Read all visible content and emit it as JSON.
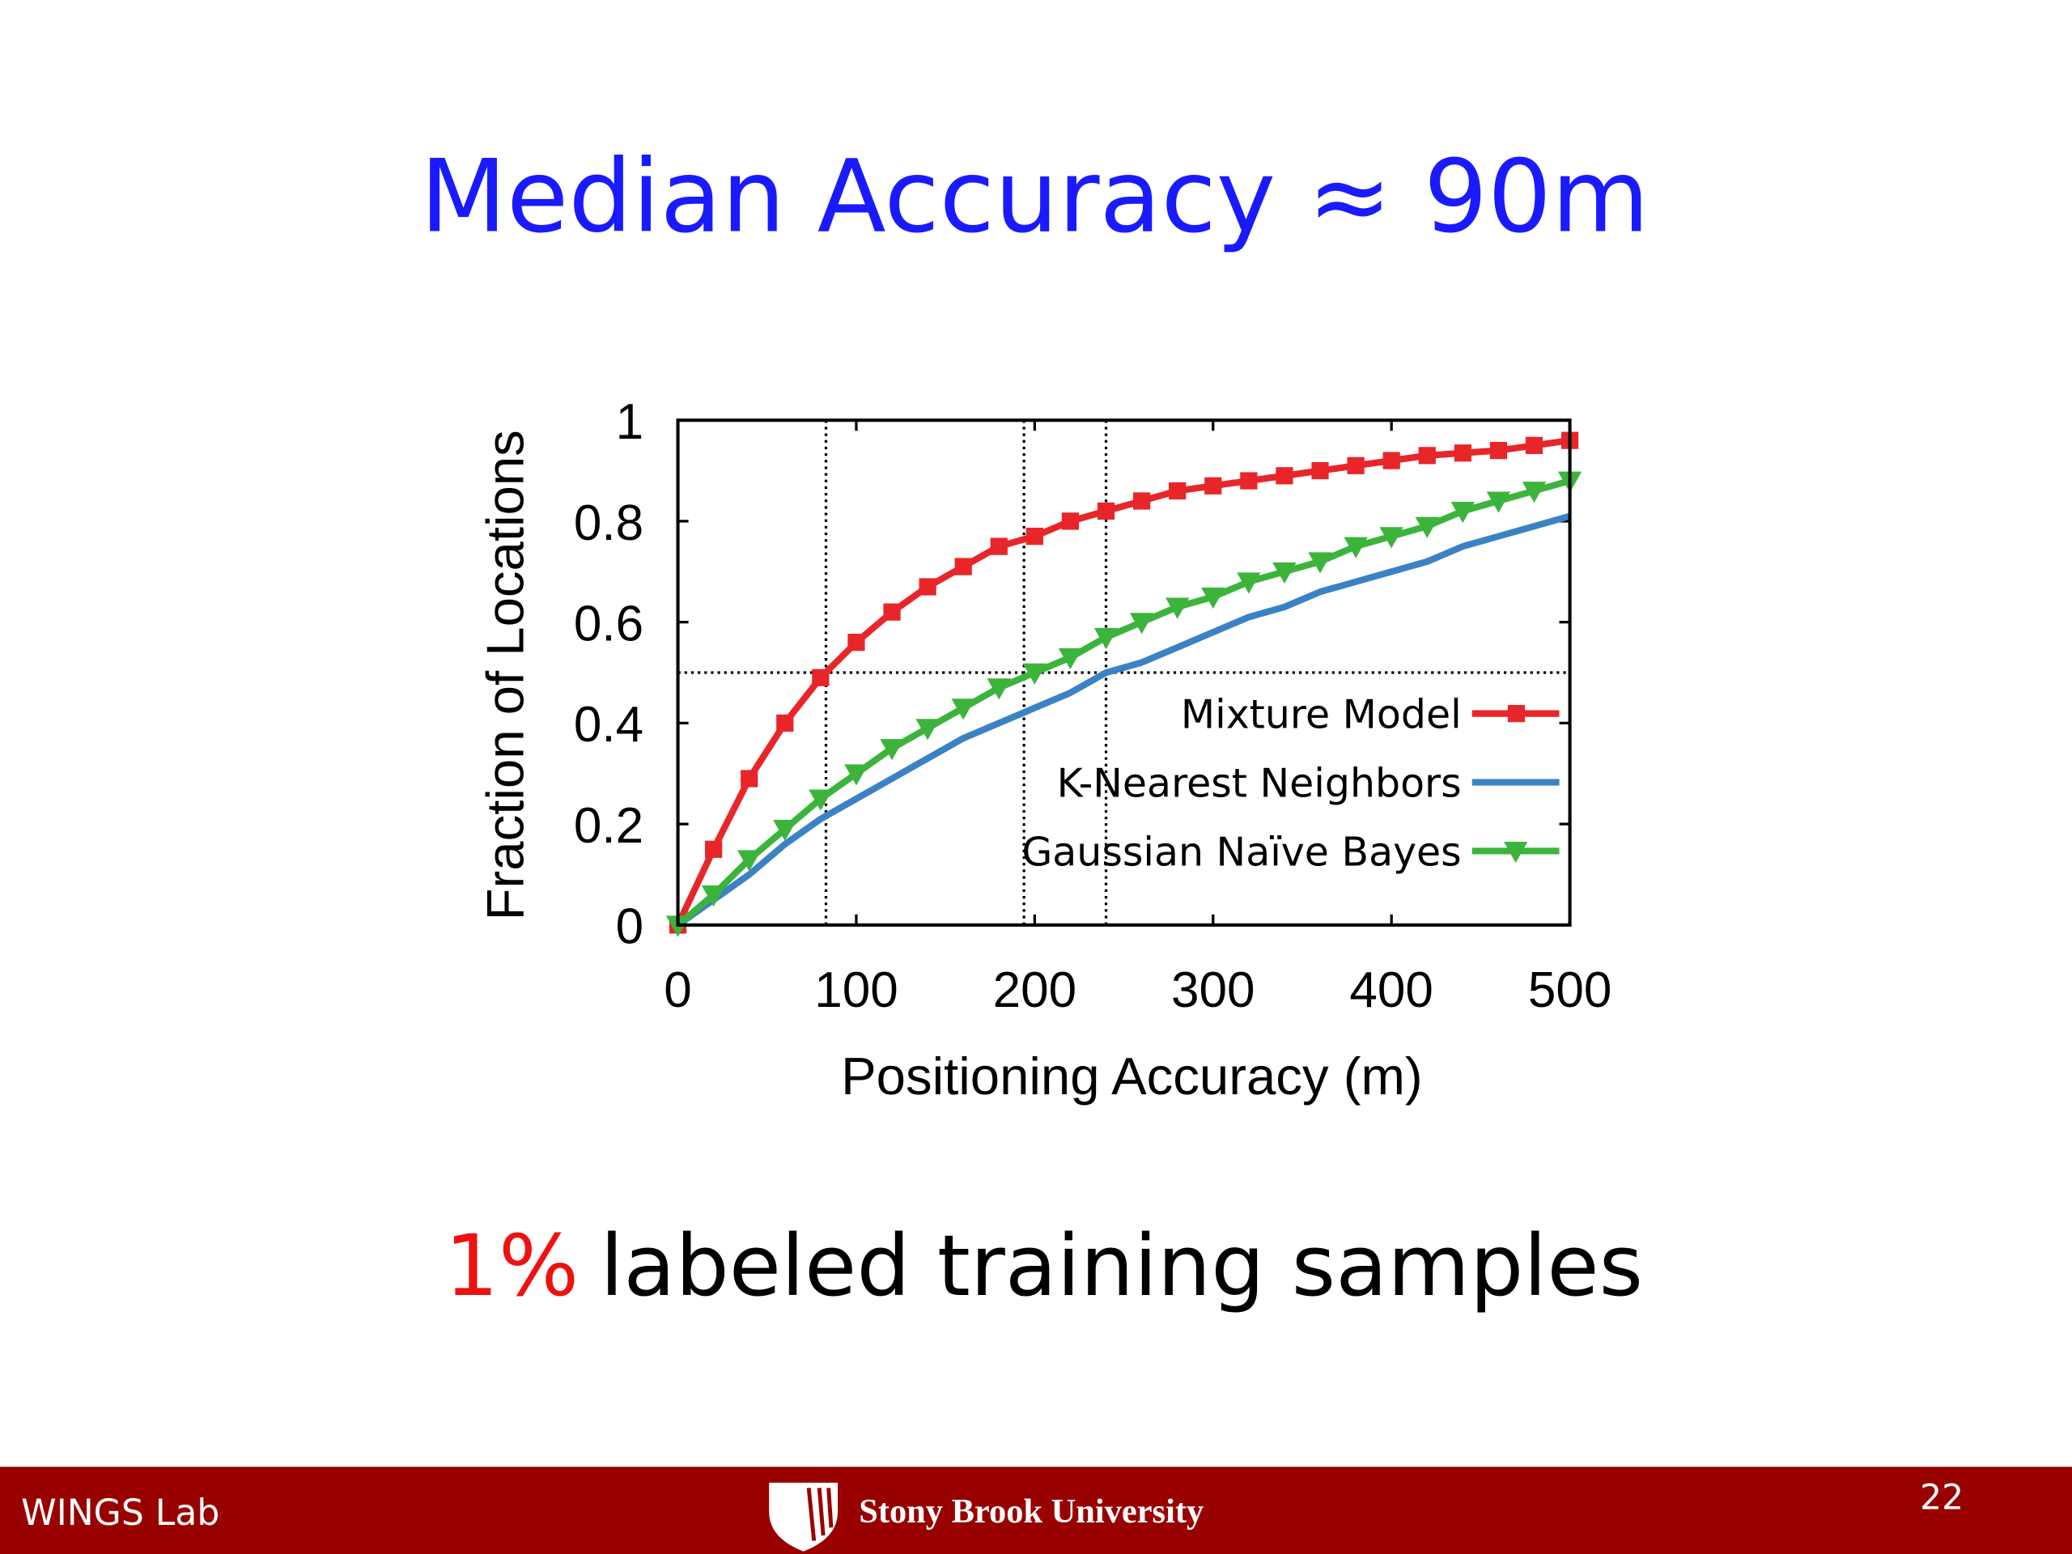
{
  "slide": {
    "title": "Median Accuracy ≈ 90m",
    "caption_highlight": "1%",
    "caption": "labeled training samples",
    "footer_left": "WINGS Lab",
    "footer_center": "Stony Brook University",
    "page_number": "22"
  },
  "chart_data": {
    "type": "line",
    "xlabel": "Positioning Accuracy (m)",
    "ylabel": "Fraction of Locations",
    "x": [
      0,
      20,
      40,
      60,
      80,
      100,
      120,
      140,
      160,
      180,
      200,
      220,
      240,
      260,
      280,
      300,
      320,
      340,
      360,
      380,
      400,
      420,
      440,
      460,
      480,
      500
    ],
    "series": [
      {
        "name": "Mixture Model",
        "color": "#e8262a",
        "marker": "square",
        "values": [
          0,
          0.15,
          0.29,
          0.4,
          0.49,
          0.56,
          0.62,
          0.67,
          0.71,
          0.75,
          0.77,
          0.8,
          0.82,
          0.84,
          0.86,
          0.87,
          0.88,
          0.89,
          0.9,
          0.91,
          0.92,
          0.93,
          0.935,
          0.94,
          0.95,
          0.96
        ]
      },
      {
        "name": "K-Nearest Neighbors",
        "color": "#3b82c4",
        "marker": null,
        "values": [
          0,
          0.05,
          0.1,
          0.16,
          0.21,
          0.25,
          0.29,
          0.33,
          0.37,
          0.4,
          0.43,
          0.46,
          0.5,
          0.52,
          0.55,
          0.58,
          0.61,
          0.63,
          0.66,
          0.68,
          0.7,
          0.72,
          0.75,
          0.77,
          0.79,
          0.81
        ]
      },
      {
        "name": "Gaussian Naïve Bayes",
        "color": "#3cb43c",
        "marker": "triangle-down",
        "values": [
          0,
          0.06,
          0.13,
          0.19,
          0.25,
          0.3,
          0.35,
          0.39,
          0.43,
          0.47,
          0.5,
          0.53,
          0.57,
          0.6,
          0.63,
          0.65,
          0.68,
          0.7,
          0.72,
          0.75,
          0.77,
          0.79,
          0.82,
          0.84,
          0.86,
          0.88
        ]
      }
    ],
    "reference_lines": {
      "x": [
        83,
        194,
        240
      ],
      "y": [
        0.5
      ]
    },
    "xlim": [
      0,
      500
    ],
    "ylim": [
      0,
      1
    ],
    "xticks": [
      0,
      100,
      200,
      300,
      400,
      500
    ],
    "yticks": [
      0,
      0.2,
      0.4,
      0.6,
      0.8,
      1
    ],
    "legend": "lower right"
  }
}
